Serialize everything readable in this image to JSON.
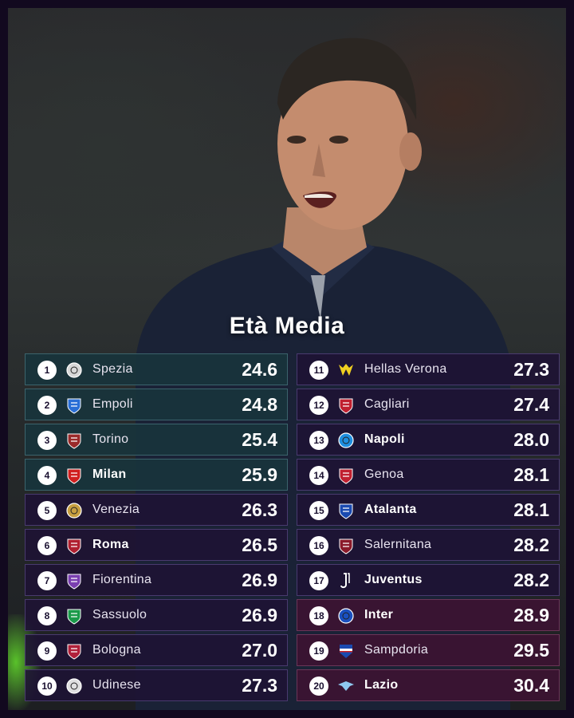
{
  "title": "Età Media",
  "left_rows": [
    {
      "rank": "1",
      "team": "Spezia",
      "age": "24.6",
      "bold": false,
      "tone": "teal",
      "logo": "spezia-icon",
      "color": "#d8d8d8"
    },
    {
      "rank": "2",
      "team": "Empoli",
      "age": "24.8",
      "bold": false,
      "tone": "teal",
      "logo": "empoli-icon",
      "color": "#2a6fd6"
    },
    {
      "rank": "3",
      "team": "Torino",
      "age": "25.4",
      "bold": false,
      "tone": "teal",
      "logo": "torino-icon",
      "color": "#9a2a2a"
    },
    {
      "rank": "4",
      "team": "Milan",
      "age": "25.9",
      "bold": true,
      "tone": "teal",
      "logo": "milan-icon",
      "color": "#d02020"
    },
    {
      "rank": "5",
      "team": "Venezia",
      "age": "26.3",
      "bold": false,
      "tone": "plain",
      "logo": "venezia-icon",
      "color": "#c8a040"
    },
    {
      "rank": "6",
      "team": "Roma",
      "age": "26.5",
      "bold": true,
      "tone": "plain",
      "logo": "roma-icon",
      "color": "#b02030"
    },
    {
      "rank": "7",
      "team": "Fiorentina",
      "age": "26.9",
      "bold": false,
      "tone": "plain",
      "logo": "fiorentina-icon",
      "color": "#7a3fb0"
    },
    {
      "rank": "8",
      "team": "Sassuolo",
      "age": "26.9",
      "bold": false,
      "tone": "plain",
      "logo": "sassuolo-icon",
      "color": "#1a9a4a"
    },
    {
      "rank": "9",
      "team": "Bologna",
      "age": "27.0",
      "bold": false,
      "tone": "plain",
      "logo": "bologna-icon",
      "color": "#b0203a"
    },
    {
      "rank": "10",
      "team": "Udinese",
      "age": "27.3",
      "bold": false,
      "tone": "plain",
      "logo": "udinese-icon",
      "color": "#e0e0e0"
    }
  ],
  "right_rows": [
    {
      "rank": "11",
      "team": "Hellas Verona",
      "age": "27.3",
      "bold": false,
      "tone": "plain",
      "logo": "verona-icon",
      "color": "#f0d020"
    },
    {
      "rank": "12",
      "team": "Cagliari",
      "age": "27.4",
      "bold": false,
      "tone": "plain",
      "logo": "cagliari-icon",
      "color": "#c02030"
    },
    {
      "rank": "13",
      "team": "Napoli",
      "age": "28.0",
      "bold": true,
      "tone": "plain",
      "logo": "napoli-icon",
      "color": "#1e8fe0"
    },
    {
      "rank": "14",
      "team": "Genoa",
      "age": "28.1",
      "bold": false,
      "tone": "plain",
      "logo": "genoa-icon",
      "color": "#c02030"
    },
    {
      "rank": "15",
      "team": "Atalanta",
      "age": "28.1",
      "bold": true,
      "tone": "plain",
      "logo": "atalanta-icon",
      "color": "#1a4ab0"
    },
    {
      "rank": "16",
      "team": "Salernitana",
      "age": "28.2",
      "bold": false,
      "tone": "plain",
      "logo": "salernitana-icon",
      "color": "#8a1a2a"
    },
    {
      "rank": "17",
      "team": "Juventus",
      "age": "28.2",
      "bold": true,
      "tone": "plain",
      "logo": "juventus-icon",
      "color": "#ffffff"
    },
    {
      "rank": "18",
      "team": "Inter",
      "age": "28.9",
      "bold": true,
      "tone": "maroon",
      "logo": "inter-icon",
      "color": "#1a50c0"
    },
    {
      "rank": "19",
      "team": "Sampdoria",
      "age": "29.5",
      "bold": false,
      "tone": "maroon",
      "logo": "sampdoria-icon",
      "color": "#1a4ab0"
    },
    {
      "rank": "20",
      "team": "Lazio",
      "age": "30.4",
      "bold": true,
      "tone": "maroon",
      "logo": "lazio-icon",
      "color": "#8fc8f0"
    }
  ]
}
